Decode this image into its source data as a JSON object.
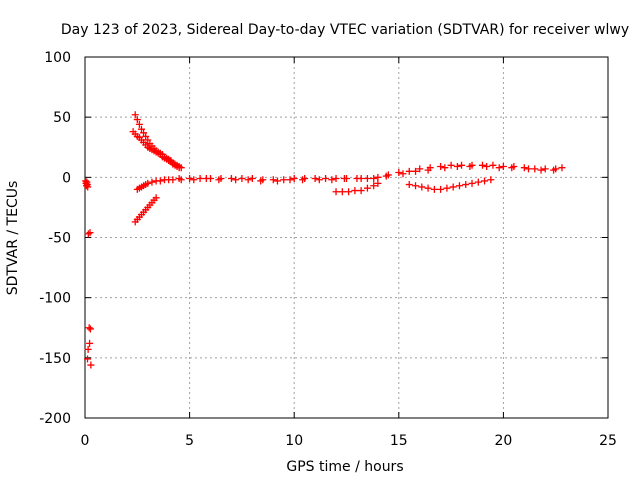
{
  "chart_data": {
    "type": "scatter",
    "title": "Day 123 of 2023, Sidereal Day-to-day VTEC variation (SDTVAR) for receiver wlwy",
    "xlabel": "GPS time / hours",
    "ylabel": "SDTVAR / TECUs",
    "xlim": [
      0,
      25
    ],
    "ylim": [
      -200,
      100
    ],
    "x_ticks": [
      0,
      5,
      10,
      15,
      20,
      25
    ],
    "y_ticks": [
      -200,
      -150,
      -100,
      -50,
      0,
      50,
      100
    ],
    "grid": true,
    "legend": "none",
    "marker": "plus",
    "series_color": "#ff0000",
    "points": [
      [
        0.03,
        -3
      ],
      [
        0.05,
        -5
      ],
      [
        0.07,
        -7
      ],
      [
        0.09,
        -4
      ],
      [
        0.11,
        -6
      ],
      [
        0.13,
        -8
      ],
      [
        0.16,
        -47
      ],
      [
        0.24,
        -46
      ],
      [
        0.2,
        -125
      ],
      [
        0.26,
        -126
      ],
      [
        0.15,
        -143
      ],
      [
        0.22,
        -138
      ],
      [
        0.12,
        -151
      ],
      [
        0.28,
        -156
      ],
      [
        2.4,
        52
      ],
      [
        2.5,
        48
      ],
      [
        2.6,
        44
      ],
      [
        2.7,
        40
      ],
      [
        2.8,
        37
      ],
      [
        2.9,
        34
      ],
      [
        3.0,
        31
      ],
      [
        3.1,
        28
      ],
      [
        3.2,
        26
      ],
      [
        3.3,
        24
      ],
      [
        3.4,
        22
      ],
      [
        3.5,
        21
      ],
      [
        3.6,
        20
      ],
      [
        3.7,
        19
      ],
      [
        3.8,
        17
      ],
      [
        3.9,
        16
      ],
      [
        4.0,
        15
      ],
      [
        4.1,
        14
      ],
      [
        4.2,
        12
      ],
      [
        4.3,
        11
      ],
      [
        4.4,
        10
      ],
      [
        4.5,
        9
      ],
      [
        4.6,
        8
      ],
      [
        2.3,
        38
      ],
      [
        2.4,
        36
      ],
      [
        2.5,
        34
      ],
      [
        2.6,
        33
      ],
      [
        2.7,
        31
      ],
      [
        2.8,
        29
      ],
      [
        2.9,
        27
      ],
      [
        3.0,
        25
      ],
      [
        3.1,
        24
      ],
      [
        3.2,
        23
      ],
      [
        3.3,
        22
      ],
      [
        3.4,
        21
      ],
      [
        3.5,
        20
      ],
      [
        3.6,
        19
      ],
      [
        3.7,
        17
      ],
      [
        3.8,
        16
      ],
      [
        3.9,
        15
      ],
      [
        4.0,
        14
      ],
      [
        4.1,
        13
      ],
      [
        4.2,
        11
      ],
      [
        4.3,
        10
      ],
      [
        4.4,
        9
      ],
      [
        4.5,
        8
      ],
      [
        2.4,
        -37
      ],
      [
        2.5,
        -35
      ],
      [
        2.6,
        -33
      ],
      [
        2.7,
        -31
      ],
      [
        2.8,
        -29
      ],
      [
        2.9,
        -27
      ],
      [
        3.0,
        -25
      ],
      [
        3.1,
        -23
      ],
      [
        3.2,
        -21
      ],
      [
        3.3,
        -19
      ],
      [
        3.4,
        -17
      ],
      [
        2.5,
        -10
      ],
      [
        2.6,
        -9
      ],
      [
        2.7,
        -8
      ],
      [
        2.8,
        -7
      ],
      [
        2.9,
        -6
      ],
      [
        3.0,
        -5
      ],
      [
        3.2,
        -4
      ],
      [
        3.4,
        -3
      ],
      [
        3.6,
        -3
      ],
      [
        3.8,
        -2
      ],
      [
        4.0,
        -2
      ],
      [
        4.2,
        -2
      ],
      [
        4.5,
        -1
      ],
      [
        5.0,
        -1
      ],
      [
        5.5,
        -1
      ],
      [
        6.0,
        -1
      ],
      [
        6.5,
        -1
      ],
      [
        7.0,
        -1
      ],
      [
        7.5,
        -1
      ],
      [
        8.0,
        -1
      ],
      [
        8.5,
        -2
      ],
      [
        9.0,
        -2
      ],
      [
        9.5,
        -2
      ],
      [
        10.0,
        -1
      ],
      [
        10.5,
        -1
      ],
      [
        11.0,
        -1
      ],
      [
        11.5,
        -1
      ],
      [
        12.0,
        -1
      ],
      [
        12.5,
        -1
      ],
      [
        13.0,
        -1
      ],
      [
        13.5,
        -1
      ],
      [
        14.0,
        0
      ],
      [
        14.5,
        2
      ],
      [
        15.0,
        4
      ],
      [
        15.5,
        5
      ],
      [
        16.0,
        7
      ],
      [
        16.5,
        8
      ],
      [
        17.0,
        9
      ],
      [
        17.5,
        10
      ],
      [
        18.0,
        10
      ],
      [
        18.5,
        10
      ],
      [
        19.0,
        10
      ],
      [
        19.5,
        10
      ],
      [
        20.0,
        9
      ],
      [
        20.5,
        9
      ],
      [
        21.0,
        8
      ],
      [
        21.5,
        7
      ],
      [
        22.0,
        7
      ],
      [
        22.5,
        7
      ],
      [
        22.8,
        8
      ],
      [
        4.6,
        -2
      ],
      [
        5.2,
        -2
      ],
      [
        5.8,
        -1
      ],
      [
        6.4,
        -2
      ],
      [
        7.2,
        -2
      ],
      [
        7.8,
        -2
      ],
      [
        8.4,
        -3
      ],
      [
        9.2,
        -3
      ],
      [
        9.8,
        -2
      ],
      [
        10.4,
        -2
      ],
      [
        11.2,
        -2
      ],
      [
        11.8,
        -2
      ],
      [
        12.4,
        -1
      ],
      [
        13.2,
        -1
      ],
      [
        13.8,
        -1
      ],
      [
        14.4,
        1
      ],
      [
        15.2,
        3
      ],
      [
        15.8,
        5
      ],
      [
        16.4,
        6
      ],
      [
        17.2,
        8
      ],
      [
        17.8,
        9
      ],
      [
        18.4,
        9
      ],
      [
        19.2,
        9
      ],
      [
        19.8,
        8
      ],
      [
        20.4,
        8
      ],
      [
        21.2,
        7
      ],
      [
        21.8,
        6
      ],
      [
        22.4,
        6
      ],
      [
        12.0,
        -12
      ],
      [
        12.3,
        -12
      ],
      [
        12.6,
        -12
      ],
      [
        12.9,
        -11
      ],
      [
        13.2,
        -11
      ],
      [
        13.5,
        -9
      ],
      [
        13.8,
        -7
      ],
      [
        14.0,
        -5
      ],
      [
        15.5,
        -6
      ],
      [
        15.8,
        -7
      ],
      [
        16.1,
        -8
      ],
      [
        16.4,
        -9
      ],
      [
        16.7,
        -10
      ],
      [
        17.0,
        -10
      ],
      [
        17.3,
        -9
      ],
      [
        17.6,
        -8
      ],
      [
        17.9,
        -7
      ],
      [
        18.2,
        -6
      ],
      [
        18.5,
        -5
      ],
      [
        18.8,
        -4
      ],
      [
        19.1,
        -3
      ],
      [
        19.4,
        -2
      ]
    ]
  }
}
